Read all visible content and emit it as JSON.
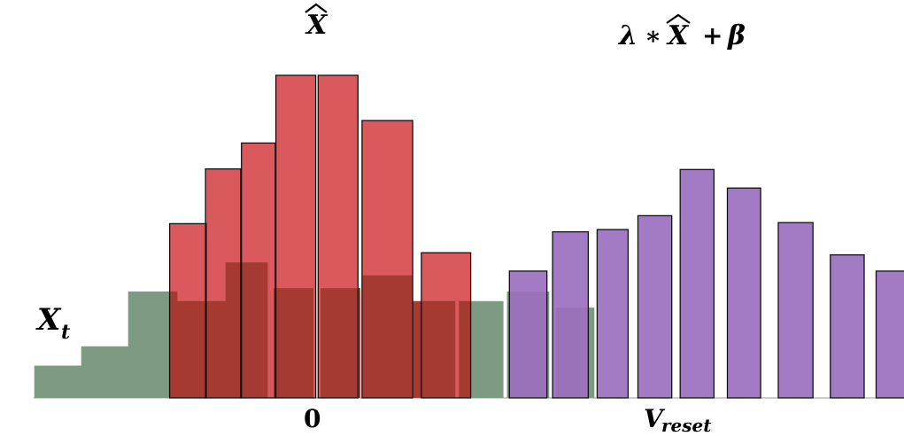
{
  "labels": {
    "xhat_symbol": "X",
    "transform_lambda": "λ",
    "transform_mul": "∗",
    "transform_x": "X",
    "transform_plus": "+",
    "transform_beta": "β",
    "xt_base": "X",
    "xt_sub": "t",
    "zero_label": "0",
    "vreset_base": "V",
    "vreset_sub": "reset"
  },
  "colors": {
    "xt_fill": "#7d9a82",
    "xhat_fill": "#d9595c",
    "overlap_fill": "#a53a33",
    "transformed_fill": "#9b6fbf",
    "stroke": "#111111",
    "baseline": "#999999"
  },
  "chart_data": {
    "type": "bar",
    "series": [
      {
        "name": "X_t",
        "x": [
          -5.5,
          -4.5,
          -3.5,
          -2.5,
          -1.5,
          -0.5,
          0.5,
          1.5,
          2.5,
          3.5,
          4.5,
          5.5
        ],
        "values": [
          1.0,
          1.6,
          3.3,
          3.0,
          4.2,
          3.4,
          3.4,
          3.8,
          3.0,
          3.0,
          3.3,
          2.8
        ]
      },
      {
        "name": "X̂",
        "x": [
          -2.75,
          -2.0,
          -1.25,
          -0.45,
          0.45,
          1.5,
          2.75
        ],
        "values": [
          5.4,
          7.1,
          7.9,
          10.0,
          10.0,
          8.6,
          4.5
        ]
      },
      {
        "name": "λ ∗ X̂ + β",
        "x": [
          4.5,
          5.4,
          6.3,
          7.2,
          8.1,
          9.1,
          10.2,
          11.3,
          12.3
        ],
        "values": [
          5.5,
          7.2,
          7.3,
          7.9,
          9.9,
          9.1,
          7.6,
          6.2,
          5.5
        ]
      }
    ]
  }
}
